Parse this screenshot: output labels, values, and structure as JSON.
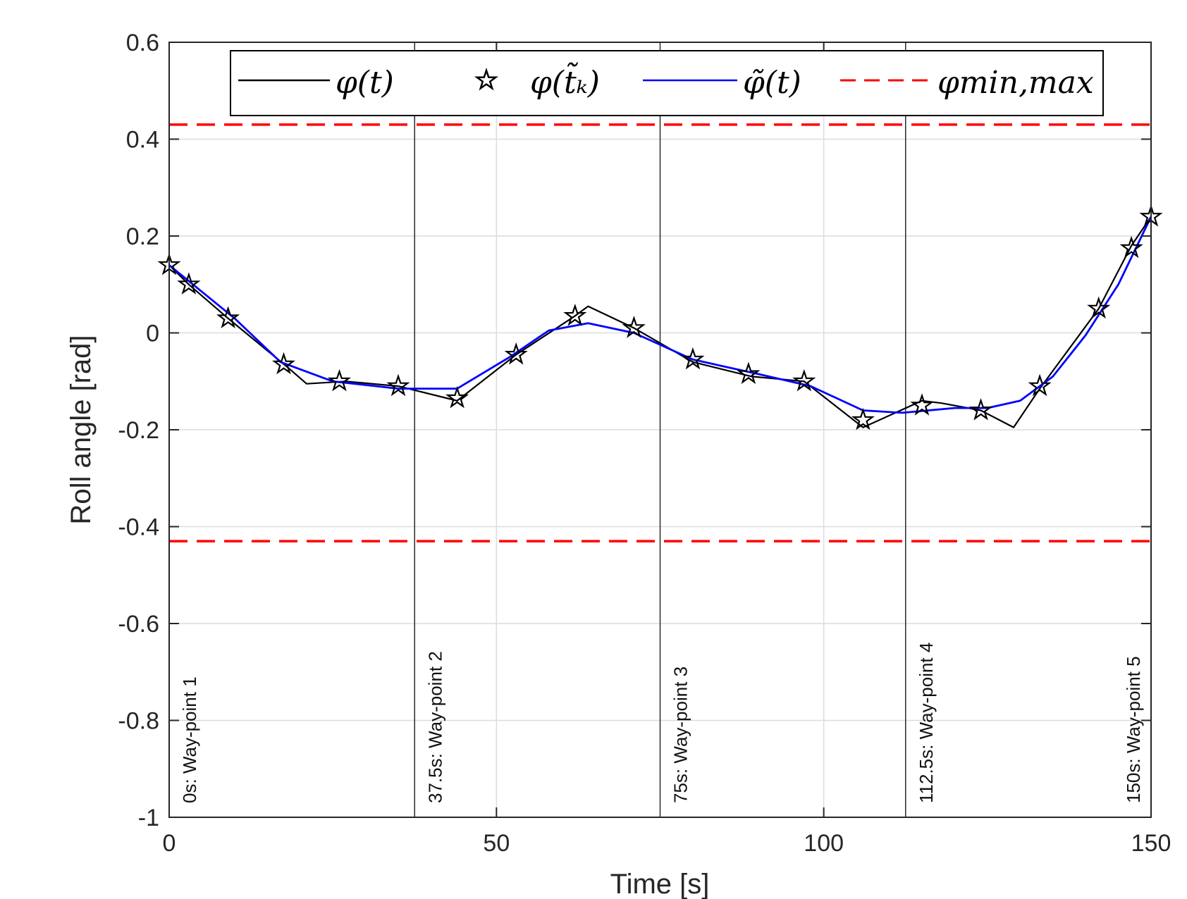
{
  "chart_data": {
    "type": "line",
    "xlabel": "Time [s]",
    "ylabel": "Roll angle [rad]",
    "xlim": [
      0,
      150
    ],
    "ylim": [
      -1,
      0.6
    ],
    "xticks": [
      0,
      50,
      100,
      150
    ],
    "xtick_labels": [
      "0",
      "50",
      "100",
      "150"
    ],
    "yticks": [
      -1,
      -0.8,
      -0.6,
      -0.4,
      -0.2,
      0,
      0.2,
      0.4,
      0.6
    ],
    "ytick_labels": [
      "-1",
      "-0.8",
      "-0.6",
      "-0.4",
      "-0.2",
      "0",
      "0.2",
      "0.4",
      "0.6"
    ],
    "grid": true,
    "legend_position": "top",
    "series": [
      {
        "name": "φ(t)",
        "style": "solid",
        "color": "#000000",
        "x": [
          0,
          3,
          9,
          18,
          21,
          27,
          35,
          44,
          53,
          62,
          64,
          71,
          80,
          89,
          97,
          106,
          115,
          118,
          124,
          129,
          133,
          142,
          147,
          150
        ],
        "y": [
          0.14,
          0.1,
          0.03,
          -0.07,
          -0.105,
          -0.1,
          -0.11,
          -0.14,
          -0.045,
          0.035,
          0.055,
          0.01,
          -0.06,
          -0.09,
          -0.1,
          -0.195,
          -0.14,
          -0.145,
          -0.16,
          -0.195,
          -0.115,
          0.05,
          0.18,
          0.24
        ]
      },
      {
        "name": "φ(t̃ₖ)",
        "style": "star-markers",
        "color": "#000000",
        "x": [
          0,
          3,
          9,
          17.5,
          26,
          35,
          44,
          53,
          62,
          71,
          80,
          88.5,
          97,
          106,
          115,
          124,
          133,
          142,
          147,
          150
        ],
        "y": [
          0.14,
          0.1,
          0.03,
          -0.065,
          -0.1,
          -0.11,
          -0.135,
          -0.045,
          0.035,
          0.01,
          -0.055,
          -0.085,
          -0.1,
          -0.18,
          -0.15,
          -0.16,
          -0.11,
          0.05,
          0.175,
          0.24
        ]
      },
      {
        "name": "φ̃(t)",
        "style": "solid",
        "color": "#0000ff",
        "x": [
          0,
          5,
          10,
          17,
          25,
          35,
          44,
          52,
          58,
          64,
          71,
          80,
          90,
          98,
          106,
          112,
          120,
          125,
          130,
          135,
          140,
          145,
          150
        ],
        "y": [
          0.14,
          0.085,
          0.03,
          -0.06,
          -0.1,
          -0.115,
          -0.115,
          -0.05,
          0.005,
          0.02,
          0.0,
          -0.055,
          -0.085,
          -0.11,
          -0.16,
          -0.165,
          -0.155,
          -0.155,
          -0.14,
          -0.09,
          -0.005,
          0.1,
          0.24
        ]
      },
      {
        "name": "φmin,max",
        "style": "dashed",
        "color": "#ff0000",
        "bounds": [
          -0.43,
          0.43
        ]
      }
    ],
    "waypoints": [
      {
        "x": 0,
        "label": "0s: Way-point 1"
      },
      {
        "x": 37.5,
        "label": "37.5s: Way-point 2"
      },
      {
        "x": 75,
        "label": "75s: Way-point 3"
      },
      {
        "x": 112.5,
        "label": "112.5s: Way-point 4"
      },
      {
        "x": 150,
        "label": "150s: Way-point 5"
      }
    ]
  }
}
